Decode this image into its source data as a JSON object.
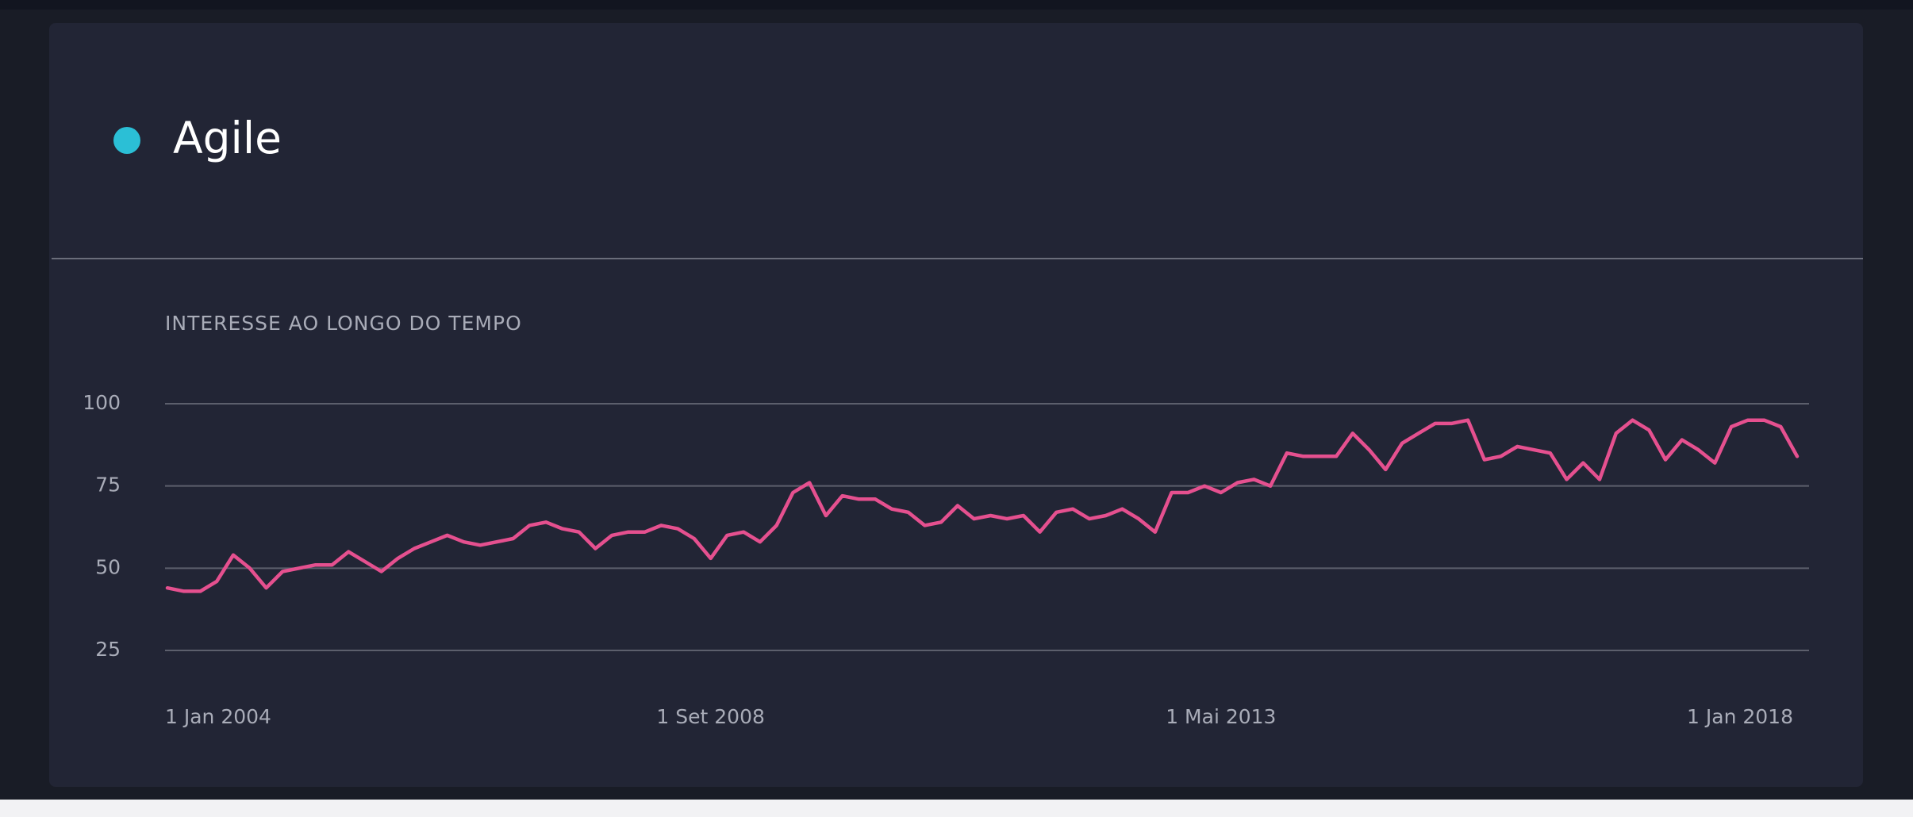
{
  "chart_data": {
    "type": "line",
    "title": "INTERESSE AO LONGO DO TEMPO",
    "categories": [
      "1 Jan 2004",
      null,
      null,
      null,
      null,
      null,
      null,
      null,
      null,
      null,
      null,
      null,
      null,
      null,
      null,
      null,
      null,
      null,
      null,
      null,
      null,
      null,
      null,
      null,
      null,
      null,
      null,
      null,
      null,
      null,
      null,
      null,
      null,
      "1 Set 2008",
      null,
      null,
      null,
      null,
      null,
      null,
      null,
      null,
      null,
      null,
      null,
      null,
      null,
      null,
      null,
      null,
      null,
      null,
      null,
      null,
      null,
      null,
      null,
      null,
      null,
      null,
      null,
      null,
      null,
      null,
      "1 Mai 2013",
      null,
      null,
      null,
      null,
      null,
      null,
      null,
      null,
      null,
      null,
      null,
      null,
      null,
      null,
      null,
      null,
      null,
      null,
      null,
      null,
      null,
      null,
      null,
      null,
      null,
      null,
      null,
      null,
      null,
      null,
      null,
      null,
      null,
      null,
      "1 Jan 2018"
    ],
    "series": [
      {
        "name": "Agile",
        "color": "#e5508f",
        "marker_color": "#2bbfd6",
        "values": [
          44,
          43,
          43,
          46,
          54,
          50,
          44,
          49,
          50,
          51,
          51,
          55,
          52,
          49,
          53,
          56,
          58,
          60,
          58,
          57,
          58,
          59,
          63,
          64,
          62,
          61,
          56,
          60,
          61,
          61,
          63,
          62,
          59,
          53,
          60,
          61,
          58,
          63,
          73,
          76,
          66,
          72,
          71,
          71,
          68,
          67,
          63,
          64,
          69,
          65,
          66,
          65,
          66,
          61,
          67,
          68,
          65,
          66,
          68,
          65,
          61,
          73,
          73,
          75,
          73,
          76,
          77,
          75,
          85,
          84,
          84,
          84,
          91,
          86,
          80,
          88,
          91,
          94,
          94,
          95,
          83,
          84,
          87,
          86,
          85,
          77,
          82,
          77,
          91,
          95,
          92,
          83,
          89,
          86,
          82,
          93,
          95,
          95,
          93,
          84
        ]
      }
    ],
    "ylim": [
      25,
      100
    ],
    "yticks": [
      25,
      50,
      75,
      100
    ],
    "grid": true
  }
}
